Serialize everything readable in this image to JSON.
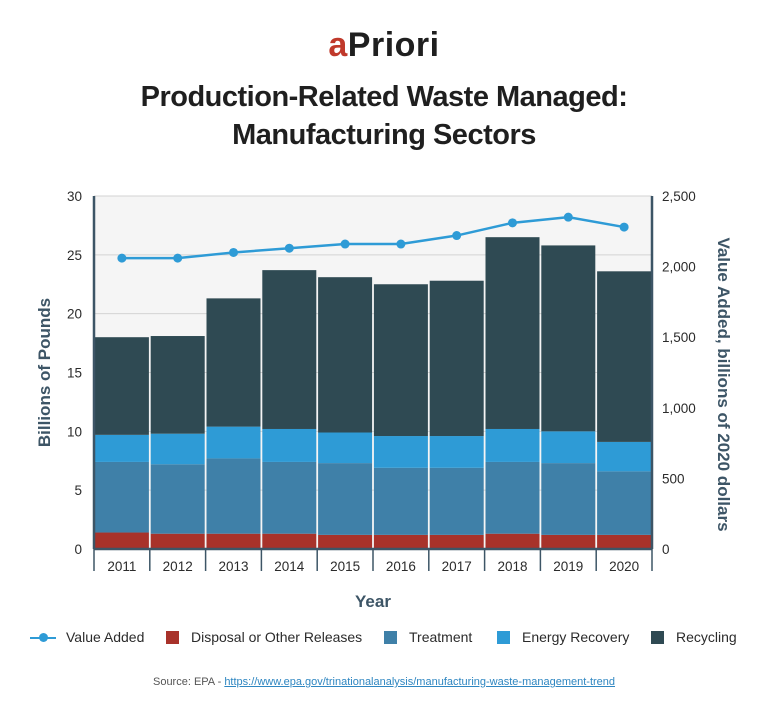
{
  "logo": {
    "prefix": "a",
    "rest": "Priori"
  },
  "title": {
    "line1": "Production-Related Waste Managed:",
    "line2": "Manufacturing Sectors"
  },
  "source": {
    "prefix": "Source: EPA - ",
    "link_text": "https://www.epa.gov/trinationalanalysis/manufacturing-waste-management-trend"
  },
  "colors": {
    "disposal": "#a8322a",
    "treatment": "#3f80a8",
    "energy": "#2e9bd6",
    "recycling": "#2f4a53",
    "value_added": "#2e9bd6",
    "plot_bg": "#f5f5f5"
  },
  "chart_data": {
    "type": "bar",
    "stacked": true,
    "xlabel": "Year",
    "ylabel": "Billions of Pounds",
    "y2label": "Value Added, billions of 2020 dollars",
    "categories": [
      "2011",
      "2012",
      "2013",
      "2014",
      "2015",
      "2016",
      "2017",
      "2018",
      "2019",
      "2020"
    ],
    "ylim": [
      0,
      30
    ],
    "yticks": [
      0,
      5,
      10,
      15,
      20,
      25,
      30
    ],
    "y2lim": [
      0,
      2500
    ],
    "y2ticks": [
      0,
      500,
      1000,
      1500,
      2000,
      2500
    ],
    "y2tick_labels": [
      "0",
      "500",
      "1,000",
      "1,500",
      "2,000",
      "2,500"
    ],
    "grid": true,
    "legend_position": "bottom",
    "series": [
      {
        "name": "Disposal or Other Releases",
        "color_key": "disposal",
        "values": [
          1.4,
          1.3,
          1.3,
          1.3,
          1.2,
          1.2,
          1.2,
          1.3,
          1.2,
          1.2
        ]
      },
      {
        "name": "Treatment",
        "color_key": "treatment",
        "values": [
          6.0,
          5.9,
          6.4,
          6.1,
          6.1,
          5.7,
          5.7,
          6.1,
          6.1,
          5.4
        ]
      },
      {
        "name": "Energy Recovery",
        "color_key": "energy",
        "values": [
          2.3,
          2.6,
          2.7,
          2.8,
          2.6,
          2.7,
          2.7,
          2.8,
          2.7,
          2.5
        ]
      },
      {
        "name": "Recycling",
        "color_key": "recycling",
        "values": [
          8.3,
          8.3,
          10.9,
          13.5,
          13.2,
          12.9,
          13.2,
          16.3,
          15.8,
          14.5
        ]
      }
    ],
    "line_series": {
      "name": "Value Added",
      "axis": "right",
      "color_key": "value_added",
      "values": [
        2060,
        2060,
        2100,
        2130,
        2160,
        2160,
        2220,
        2310,
        2350,
        2280
      ]
    }
  }
}
